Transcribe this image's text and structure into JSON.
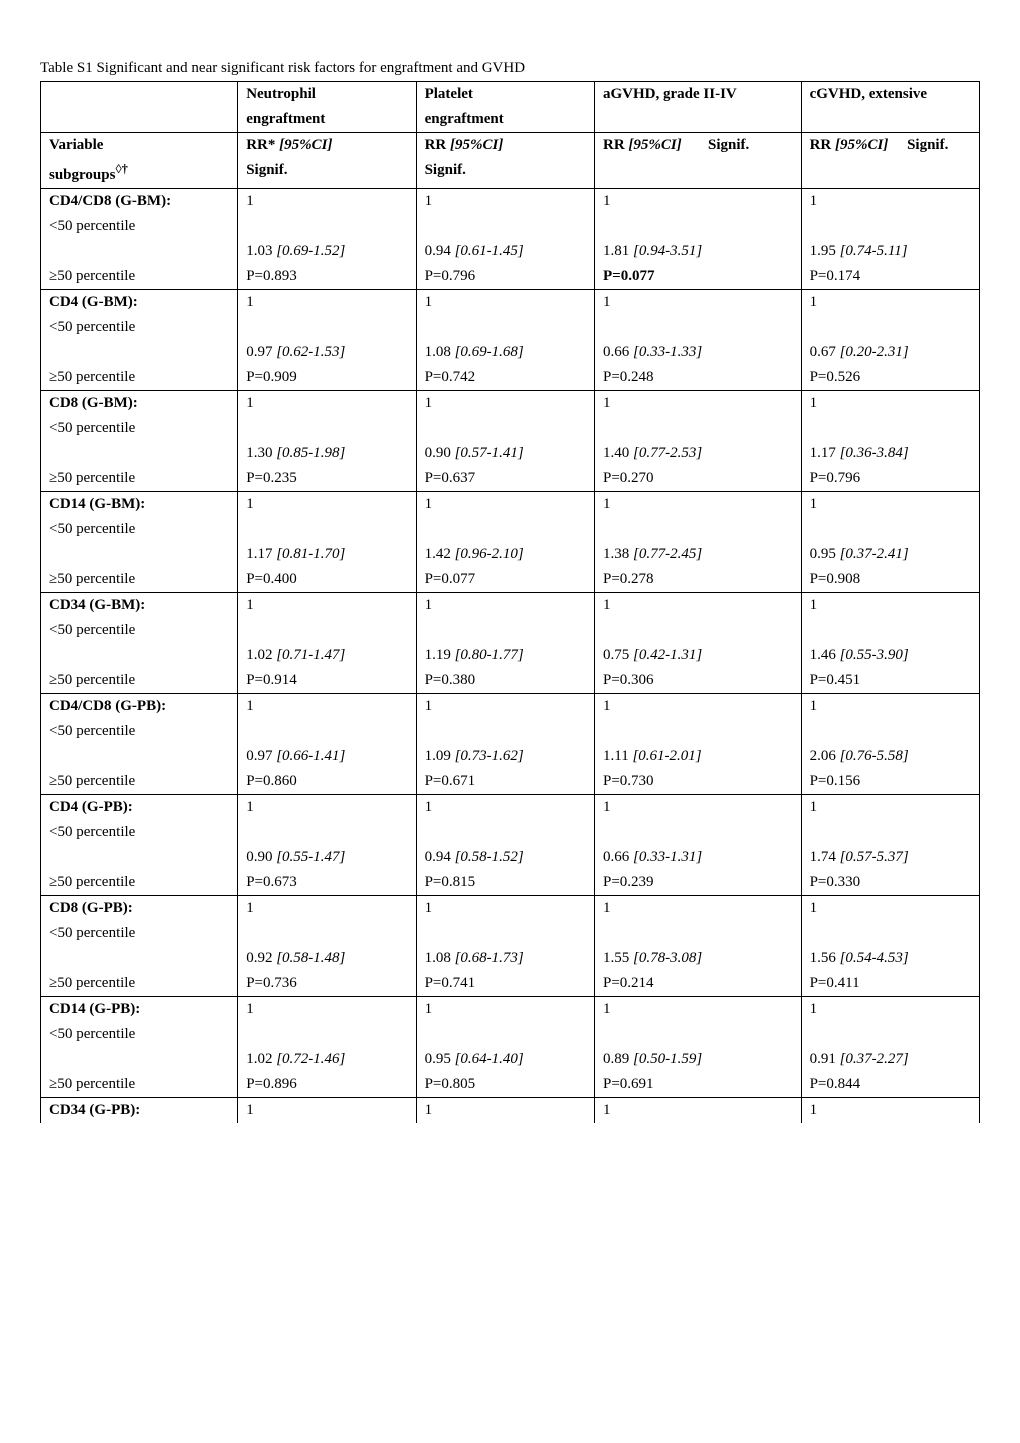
{
  "caption": "Table S1  Significant and near significant risk factors for engraftment and GVHD",
  "headers": {
    "col1_l1": "",
    "col2_l1": "Neutrophil",
    "col3_l1": "Platelet",
    "col4_l1": "aGVHD, grade II-IV",
    "col5_l1": "cGVHD, extensive",
    "col2_l2": "engraftment",
    "col3_l2": "engraftment",
    "variable": "Variable",
    "subgroups": "subgroups",
    "subgroups_sup": "◊†",
    "rrstar": "RR*",
    "rr": "RR",
    "ci": " [95%CI]",
    "signif_label": "Signif.",
    "signif_right": "Signif."
  },
  "rows": [
    {
      "label_bold": "CD4/CD8 (G-BM):",
      "sub1": "<50 percentile",
      "sub2": "≥50 percentile",
      "n_ref": "1",
      "n_rr": "1.03 ",
      "n_ci": "[0.69-1.52",
      "n_ci_close": "]",
      "n_p": "P=0.893",
      "p_ref": "1",
      "p_rr": "0.94 ",
      "p_ci": "[0.61-1.45]",
      "p_p": "P=0.796",
      "a_ref": "1",
      "a_rr": "1.81 ",
      "a_ci": "[0.94-3.51]",
      "a_p": "P=0.077",
      "a_p_bold": true,
      "c_ref": "1",
      "c_rr": "1.95 ",
      "c_ci": "[0.74-5.11]",
      "c_p": "P=0.174"
    },
    {
      "label_bold": "CD4 (G-BM):",
      "sub1": "<50 percentile",
      "sub2": "≥50 percentile",
      "n_ref": "1",
      "n_rr": "0.97 ",
      "n_ci": "[0.62-1.53]",
      "n_p": "P=0.909",
      "p_ref": "1",
      "p_rr": "1.08 ",
      "p_ci": "[0.69-1.68]",
      "p_p": "P=0.742",
      "a_ref": "1",
      "a_rr": "0.66 ",
      "a_ci": "[0.33-1.33]",
      "a_p": "P=0.248",
      "c_ref": "1",
      "c_rr": "0.67 ",
      "c_ci": "[0.20-2.31]",
      "c_p": "P=0.526"
    },
    {
      "label_bold": "CD8 (G-BM):",
      "sub1": "<50 percentile",
      "sub2": "≥50 percentile",
      "n_ref": "1",
      "n_rr": "1.30 ",
      "n_ci": "[0.85-1.98]",
      "n_p": "P=0.235",
      "p_ref": "1",
      "p_rr": "0.90 ",
      "p_ci": "[0.57-1.41]",
      "p_p": "P=0.637",
      "a_ref": "1",
      "a_rr": "1.40 ",
      "a_ci": "[0.77-2.53]",
      "a_p": "P=0.270",
      "c_ref": "1",
      "c_rr": "1.17 ",
      "c_ci": "[0.36-3.84]",
      "c_p": "P=0.796"
    },
    {
      "label_bold": "CD14 (G-BM):",
      "sub1": "<50 percentile",
      "sub2": "≥50 percentile",
      "n_ref": "1",
      "n_rr": "1.17 ",
      "n_ci": "[0.81-1.70]",
      "n_p": "P=0.400",
      "p_ref": "1",
      "p_rr": "1.42 ",
      "p_ci": "[0.96-2.10]",
      "p_p": "P=0.077",
      "a_ref": "1",
      "a_rr": "1.38 ",
      "a_ci": "[0.77-2.45]",
      "a_p": "P=0.278",
      "c_ref": "1",
      "c_rr": "0.95 ",
      "c_ci": "[0.37-2.41]",
      "c_p": "P=0.908"
    },
    {
      "label_bold": "CD34 (G-BM):",
      "sub1": "<50 percentile",
      "sub2": "≥50 percentile",
      "n_ref": "1",
      "n_rr": "1.02 ",
      "n_ci": "[0.71-1.47]",
      "n_p": "P=0.914",
      "p_ref": "1",
      "p_rr": "1.19 ",
      "p_ci": "[0.80-1.77]",
      "p_p": "P=0.380",
      "a_ref": "1",
      "a_rr": "0.75 ",
      "a_ci": "[0.42-1.31]",
      "a_p": "P=0.306",
      "c_ref": "1",
      "c_rr": "1.46 ",
      "c_ci": "[0.55-3.90]",
      "c_p": "P=0.451"
    },
    {
      "label_bold": "CD4/CD8 (G-PB):",
      "sub1": "<50 percentile",
      "sub2": "≥50 percentile",
      "n_ref": "1",
      "n_rr": "0.97 ",
      "n_ci": "[0.66-1.41",
      "n_ci_close": "]",
      "n_p": "P=0.860",
      "p_ref": "1",
      "p_rr": "1.09 ",
      "p_ci": "[0.73-1.62]",
      "p_p": "P=0.671",
      "a_ref": "1",
      "a_rr": "1.11 ",
      "a_ci": "[0.61-2.01]",
      "a_p": "P=0.730",
      "c_ref": "1",
      "c_rr": "2.06 ",
      "c_ci": "[0.76-5.58]",
      "c_p": "P=0.156"
    },
    {
      "label_bold": "CD4 (G-PB):",
      "sub1": "<50 percentile",
      "sub2": "≥50 percentile",
      "n_ref": "1",
      "n_rr": "0.90 ",
      "n_ci": "[0.55-1.47]",
      "n_p": "P=0.673",
      "p_ref": "1",
      "p_rr": "0.94 ",
      "p_ci": "[0.58-1.52]",
      "p_p": "P=0.815",
      "a_ref": "1",
      "a_rr": "0.66 ",
      "a_ci": "[0.33-1.31]",
      "a_p": "P=0.239",
      "c_ref": "1",
      "c_rr": "1.74 ",
      "c_ci": "[0.57-5.37]",
      "c_p": "P=0.330"
    },
    {
      "label_bold": "CD8 (G-PB):",
      "sub1": "<50 percentile",
      "sub2": "≥50 percentile",
      "n_ref": "1",
      "n_rr": "0.92 ",
      "n_ci": "[0.58-1.48]",
      "n_p": "P=0.736",
      "p_ref": "1",
      "p_rr": "1.08 ",
      "p_ci": "[0.68-1.73]",
      "p_p": "P=0.741",
      "a_ref": "1",
      "a_rr": "1.55 ",
      "a_ci": "[0.78-3.08]",
      "a_p": "P=0.214",
      "c_ref": "1",
      "c_rr": "1.56 ",
      "c_ci": "[0.54-4.53]",
      "c_p": "P=0.411"
    },
    {
      "label_bold": "CD14 (G-PB):",
      "sub1": "<50 percentile",
      "sub2": "≥50 percentile",
      "n_ref": "1",
      "n_rr": "1.02 ",
      "n_ci": "[0.72-1.46]",
      "n_p": "P=0.896",
      "p_ref": "1",
      "p_rr": "0.95 ",
      "p_ci": "[0.64-1.40]",
      "p_p": "P=0.805",
      "a_ref": "1",
      "a_rr": "0.89 ",
      "a_ci": "[0.50-1.59]",
      "a_p": "P=0.691",
      "c_ref": "1",
      "c_rr": "0.91 ",
      "c_ci": "[0.37-2.27]",
      "c_p": "P=0.844"
    }
  ],
  "last_row": {
    "label_bold": "CD34 (G-PB):",
    "n_ref": "1",
    "p_ref": "1",
    "a_ref": "1",
    "c_ref": "1"
  }
}
